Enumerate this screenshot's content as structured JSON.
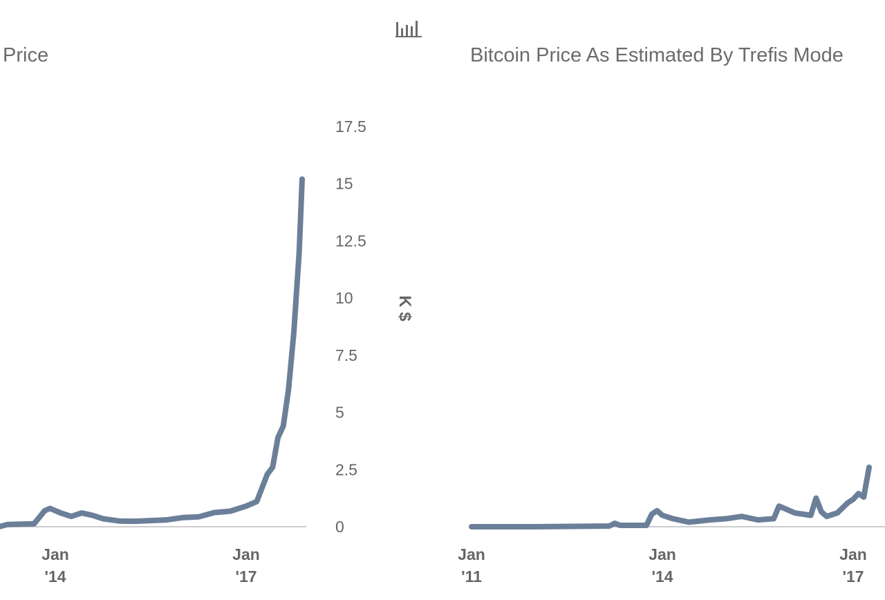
{
  "chart_data": [
    {
      "type": "line",
      "title": "Price",
      "ylabel": "K $",
      "y_ticks": [
        "0",
        "2.5",
        "5",
        "7.5",
        "10",
        "12.5",
        "15",
        "17.5"
      ],
      "ylim": [
        0,
        17.5
      ],
      "x_ticks": [
        {
          "month": "Jan",
          "year": "'14",
          "x": "2014-01"
        },
        {
          "month": "Jan",
          "year": "'17",
          "x": "2017-01"
        }
      ],
      "xlim": [
        "2012-08",
        "2018-01"
      ],
      "series": [
        {
          "color": "#6b7f99",
          "points": [
            [
              "2012-08",
              0.01
            ],
            [
              "2013-04",
              0.1
            ],
            [
              "2013-09",
              0.13
            ],
            [
              "2013-11",
              0.7
            ],
            [
              "2013-12",
              0.8
            ],
            [
              "2014-02",
              0.6
            ],
            [
              "2014-04",
              0.45
            ],
            [
              "2014-06",
              0.6
            ],
            [
              "2014-08",
              0.5
            ],
            [
              "2014-10",
              0.35
            ],
            [
              "2015-01",
              0.25
            ],
            [
              "2015-04",
              0.24
            ],
            [
              "2015-07",
              0.27
            ],
            [
              "2015-10",
              0.3
            ],
            [
              "2016-01",
              0.4
            ],
            [
              "2016-04",
              0.43
            ],
            [
              "2016-07",
              0.62
            ],
            [
              "2016-10",
              0.68
            ],
            [
              "2017-01",
              0.9
            ],
            [
              "2017-03",
              1.1
            ],
            [
              "2017-05",
              2.3
            ],
            [
              "2017-06",
              2.6
            ],
            [
              "2017-07",
              3.9
            ],
            [
              "2017-08",
              4.4
            ],
            [
              "2017-09",
              6.0
            ],
            [
              "2017-10",
              8.5
            ],
            [
              "2017-11",
              12.0
            ],
            [
              "2017-12",
              15.2
            ]
          ]
        }
      ]
    },
    {
      "type": "line",
      "title": "Bitcoin Price As Estimated By Trefis Mode",
      "x_ticks": [
        {
          "month": "Jan",
          "year": "'11",
          "x": "2011-01"
        },
        {
          "month": "Jan",
          "year": "'14",
          "x": "2014-01"
        },
        {
          "month": "Jan",
          "year": "'17",
          "x": "2017-01"
        }
      ],
      "xlim": [
        "2011-01",
        "2017-04"
      ],
      "series": [
        {
          "color": "#6b7f99",
          "points": [
            [
              "2011-01",
              0.0
            ],
            [
              "2012-01",
              0.0
            ],
            [
              "2013-03",
              0.03
            ],
            [
              "2013-04",
              0.15
            ],
            [
              "2013-05",
              0.06
            ],
            [
              "2013-10",
              0.06
            ],
            [
              "2013-11",
              0.55
            ],
            [
              "2013-12",
              0.7
            ],
            [
              "2014-01",
              0.5
            ],
            [
              "2014-03",
              0.35
            ],
            [
              "2014-06",
              0.2
            ],
            [
              "2014-10",
              0.3
            ],
            [
              "2015-01",
              0.35
            ],
            [
              "2015-04",
              0.45
            ],
            [
              "2015-07",
              0.3
            ],
            [
              "2015-10",
              0.35
            ],
            [
              "2015-11",
              0.9
            ],
            [
              "2016-02",
              0.6
            ],
            [
              "2016-05",
              0.5
            ],
            [
              "2016-06",
              1.25
            ],
            [
              "2016-07",
              0.65
            ],
            [
              "2016-08",
              0.45
            ],
            [
              "2016-10",
              0.6
            ],
            [
              "2016-12",
              1.05
            ],
            [
              "2017-01",
              1.2
            ],
            [
              "2017-02",
              1.45
            ],
            [
              "2017-03",
              1.3
            ],
            [
              "2017-04",
              2.6
            ]
          ]
        }
      ]
    }
  ]
}
